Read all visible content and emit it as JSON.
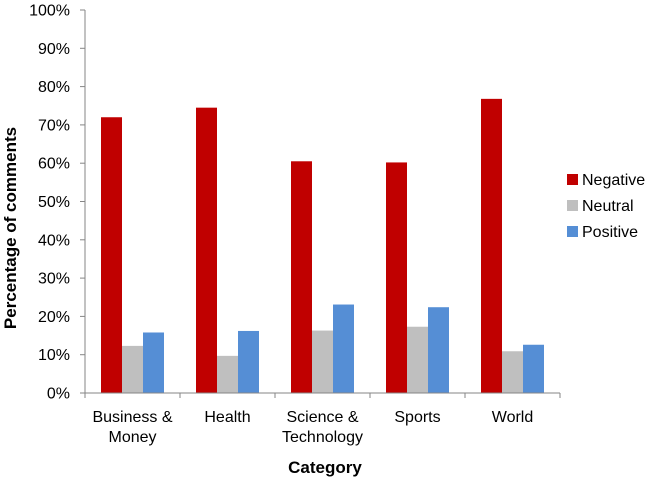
{
  "chart_data": {
    "type": "bar",
    "title": "",
    "xlabel": "Category",
    "ylabel": "Percentage of comments",
    "categories": [
      [
        "Business &",
        "Money"
      ],
      [
        "Health"
      ],
      [
        "Science &",
        "Technology"
      ],
      [
        "Sports"
      ],
      [
        "World"
      ]
    ],
    "series": [
      {
        "name": "Negative",
        "color": "#c00000",
        "values": [
          72,
          74.5,
          60.5,
          60.2,
          76.8
        ]
      },
      {
        "name": "Neutral",
        "color": "#bfbfbf",
        "values": [
          12.3,
          9.7,
          16.3,
          17.3,
          10.9
        ]
      },
      {
        "name": "Positive",
        "color": "#558ed5",
        "values": [
          15.8,
          16.2,
          23.1,
          22.4,
          12.6
        ]
      }
    ],
    "ylim": [
      0,
      100
    ],
    "yticks": [
      "0%",
      "10%",
      "20%",
      "30%",
      "40%",
      "50%",
      "60%",
      "70%",
      "80%",
      "90%",
      "100%"
    ],
    "grid": false,
    "legend_position": "right"
  }
}
